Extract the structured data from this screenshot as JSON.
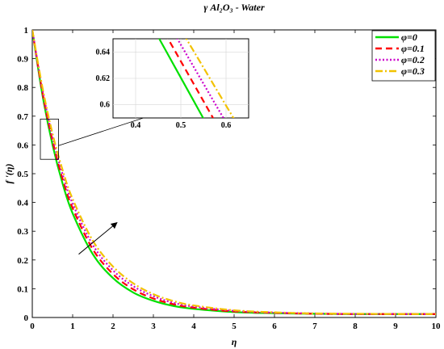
{
  "chart_data": {
    "type": "line",
    "title": "γ Al₂O₃ - Water",
    "xlabel": "η",
    "ylabel": "f '(η)",
    "xlim": [
      0,
      10
    ],
    "ylim": [
      0,
      1
    ],
    "xticks": [
      "0",
      "1",
      "2",
      "3",
      "4",
      "5",
      "6",
      "7",
      "8",
      "9",
      "10"
    ],
    "yticks": [
      "0",
      "0.1",
      "0.2",
      "0.3",
      "0.4",
      "0.5",
      "0.6",
      "0.7",
      "0.8",
      "0.9",
      "1"
    ],
    "grid": false,
    "legend_position": "top-right",
    "x": [
      0,
      0.25,
      0.5,
      0.75,
      1,
      1.5,
      2,
      2.5,
      3,
      3.5,
      4,
      5,
      6,
      7,
      8,
      9,
      10
    ],
    "series": [
      {
        "name": "φ=0",
        "color": "#00e000",
        "dash": "solid",
        "values": [
          1.0,
          0.775,
          0.601,
          0.466,
          0.362,
          0.22,
          0.137,
          0.087,
          0.058,
          0.04,
          0.03,
          0.019,
          0.015,
          0.013,
          0.012,
          0.012,
          0.012
        ]
      },
      {
        "name": "φ=0.1",
        "color": "#ff0000",
        "dash": "dashed",
        "values": [
          1.0,
          0.784,
          0.615,
          0.482,
          0.38,
          0.237,
          0.151,
          0.098,
          0.066,
          0.046,
          0.034,
          0.021,
          0.016,
          0.013,
          0.012,
          0.012,
          0.012
        ]
      },
      {
        "name": "φ=0.2",
        "color": "#cc00cc",
        "dash": "dotted",
        "values": [
          1.0,
          0.793,
          0.628,
          0.498,
          0.396,
          0.252,
          0.164,
          0.109,
          0.074,
          0.051,
          0.038,
          0.023,
          0.017,
          0.014,
          0.012,
          0.012,
          0.012
        ]
      },
      {
        "name": "φ=0.3",
        "color": "#f2c200",
        "dash": "dashdot",
        "values": [
          1.0,
          0.801,
          0.64,
          0.513,
          0.412,
          0.267,
          0.177,
          0.119,
          0.081,
          0.057,
          0.042,
          0.025,
          0.018,
          0.014,
          0.013,
          0.012,
          0.012
        ]
      }
    ],
    "inset": {
      "xlim": [
        0.35,
        0.65
      ],
      "ylim": [
        0.59,
        0.65
      ],
      "xticks": [
        "0.4",
        "0.5",
        "0.6"
      ],
      "yticks": [
        "0.6",
        "0.62",
        "0.64"
      ],
      "grid": true,
      "zoom_box": {
        "x": [
          0.2,
          0.65
        ],
        "y": [
          0.55,
          0.69
        ]
      }
    },
    "annotation_arrow": {
      "from": [
        1.15,
        0.22
      ],
      "to": [
        2.1,
        0.33
      ],
      "label": ""
    }
  }
}
